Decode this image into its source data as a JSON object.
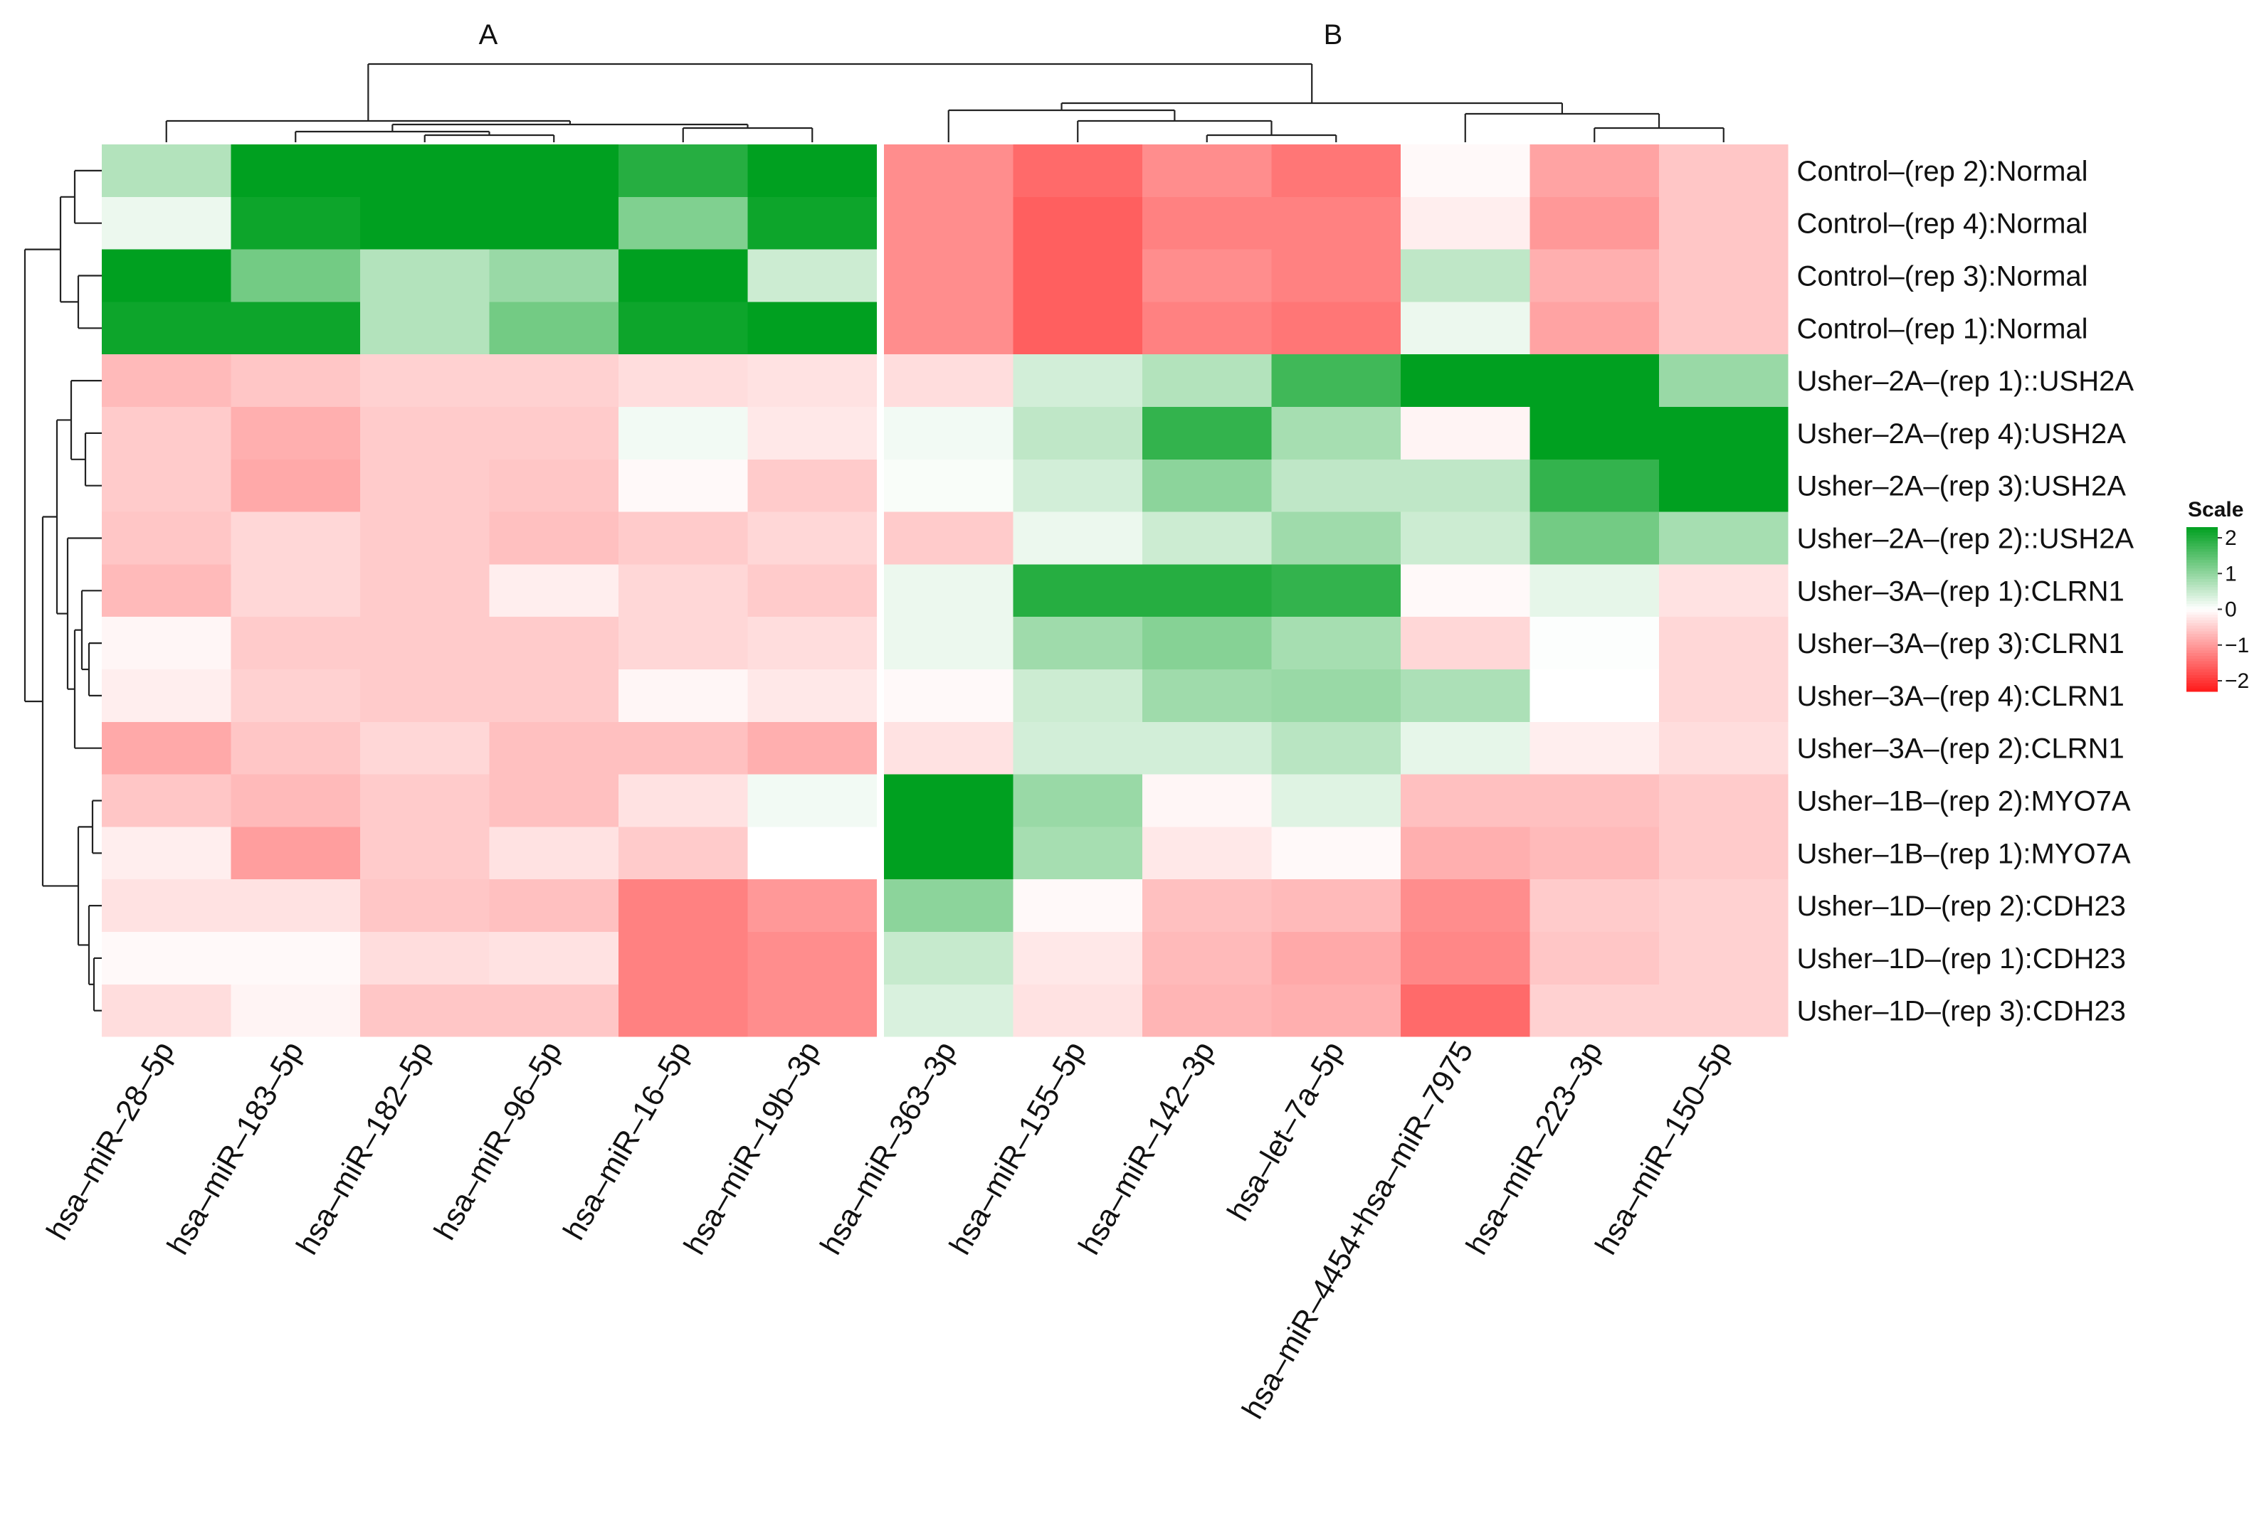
{
  "chart_data": {
    "type": "heatmap",
    "title": "",
    "group_labels": [
      "A",
      "B"
    ],
    "columns": [
      "hsa–miR–28–5p",
      "hsa–miR–183–5p",
      "hsa–miR–182–5p",
      "hsa–miR–96–5p",
      "hsa–miR–16–5p",
      "hsa–miR–19b–3p",
      "hsa–miR–363–3p",
      "hsa–miR–155–5p",
      "hsa–miR–142–3p",
      "hsa–let–7a–5p",
      "hsa–miR–4454+hsa–miR–7975",
      "hsa–miR–223–3p",
      "hsa–miR–150–5p"
    ],
    "rows": [
      "Control–(rep 2):Normal",
      "Control–(rep 4):Normal",
      "Control–(rep 3):Normal",
      "Control–(rep 1):Normal",
      "Usher–2A–(rep 1)::USH2A",
      "Usher–2A–(rep 4):USH2A",
      "Usher–2A–(rep 3):USH2A",
      "Usher–2A–(rep 2)::USH2A",
      "Usher–3A–(rep 1):CLRN1",
      "Usher–3A–(rep 3):CLRN1",
      "Usher–3A–(rep 4):CLRN1",
      "Usher–3A–(rep 2):CLRN1",
      "Usher–1B–(rep 2):MYO7A",
      "Usher–1B–(rep 1):MYO7A",
      "Usher–1D–(rep 2):CDH23",
      "Usher–1D–(rep 1):CDH23",
      "Usher–1D–(rep 3):CDH23"
    ],
    "values": [
      [
        0.6,
        2.2,
        2.2,
        2.2,
        1.7,
        2.2,
        -1.0,
        -1.3,
        -1.0,
        -1.2,
        -0.05,
        -0.8,
        -0.5
      ],
      [
        0.15,
        1.9,
        2.0,
        2.2,
        1.0,
        1.9,
        -1.0,
        -1.4,
        -1.1,
        -1.1,
        -0.15,
        -0.9,
        -0.5
      ],
      [
        2.2,
        1.1,
        0.6,
        0.8,
        2.2,
        0.4,
        -1.0,
        -1.4,
        -1.0,
        -1.1,
        0.5,
        -0.7,
        -0.5
      ],
      [
        1.9,
        1.9,
        0.6,
        1.1,
        1.9,
        2.1,
        -1.0,
        -1.4,
        -1.1,
        -1.2,
        0.15,
        -0.8,
        -0.5
      ],
      [
        -0.6,
        -0.5,
        -0.4,
        -0.4,
        -0.3,
        -0.25,
        -0.3,
        0.35,
        0.6,
        1.5,
        2.2,
        2.2,
        0.8
      ],
      [
        -0.45,
        -0.7,
        -0.45,
        -0.45,
        0.1,
        -0.2,
        0.1,
        0.5,
        1.6,
        0.7,
        -0.1,
        2.1,
        2.2
      ],
      [
        -0.45,
        -0.75,
        -0.45,
        -0.5,
        -0.05,
        -0.45,
        0.05,
        0.35,
        0.9,
        0.5,
        0.5,
        1.6,
        2.2
      ],
      [
        -0.5,
        -0.35,
        -0.45,
        -0.55,
        -0.45,
        -0.35,
        -0.45,
        0.15,
        0.4,
        0.75,
        0.4,
        1.1,
        0.7
      ],
      [
        -0.6,
        -0.35,
        -0.45,
        -0.15,
        -0.35,
        -0.45,
        0.15,
        1.7,
        1.7,
        1.6,
        -0.05,
        0.2,
        -0.25
      ],
      [
        -0.08,
        -0.45,
        -0.45,
        -0.45,
        -0.35,
        -0.3,
        0.15,
        0.75,
        0.95,
        0.7,
        -0.35,
        0.02,
        -0.35
      ],
      [
        -0.15,
        -0.4,
        -0.45,
        -0.45,
        -0.08,
        -0.2,
        -0.05,
        0.4,
        0.75,
        0.8,
        0.65,
        0.0,
        -0.35
      ],
      [
        -0.75,
        -0.5,
        -0.35,
        -0.55,
        -0.55,
        -0.7,
        -0.25,
        0.35,
        0.35,
        0.55,
        0.2,
        -0.15,
        -0.3
      ],
      [
        -0.5,
        -0.6,
        -0.45,
        -0.55,
        -0.25,
        0.1,
        2.2,
        0.8,
        -0.08,
        0.25,
        -0.55,
        -0.55,
        -0.45
      ],
      [
        -0.15,
        -0.85,
        -0.45,
        -0.25,
        -0.45,
        0.0,
        2.2,
        0.7,
        -0.2,
        -0.05,
        -0.7,
        -0.6,
        -0.45
      ],
      [
        -0.25,
        -0.25,
        -0.5,
        -0.55,
        -1.1,
        -0.9,
        0.9,
        -0.05,
        -0.55,
        -0.6,
        -1.0,
        -0.45,
        -0.4
      ],
      [
        -0.05,
        -0.05,
        -0.3,
        -0.25,
        -1.1,
        -1.0,
        0.45,
        -0.2,
        -0.6,
        -0.75,
        -1.05,
        -0.5,
        -0.4
      ],
      [
        -0.3,
        -0.1,
        -0.5,
        -0.5,
        -1.1,
        -1.0,
        0.3,
        -0.25,
        -0.65,
        -0.7,
        -1.3,
        -0.4,
        -0.4
      ]
    ],
    "column_split_after": 6,
    "color_scale": {
      "title": "Scale",
      "min": -2,
      "mid": 0,
      "max": 2,
      "low_color": "#ff1a1a",
      "mid_color": "#ffffff",
      "high_color": "#00a020",
      "ticks": [
        "2",
        "1",
        "0",
        "−1",
        "−2"
      ]
    },
    "column_dendrogram": true,
    "row_dendrogram": true
  }
}
